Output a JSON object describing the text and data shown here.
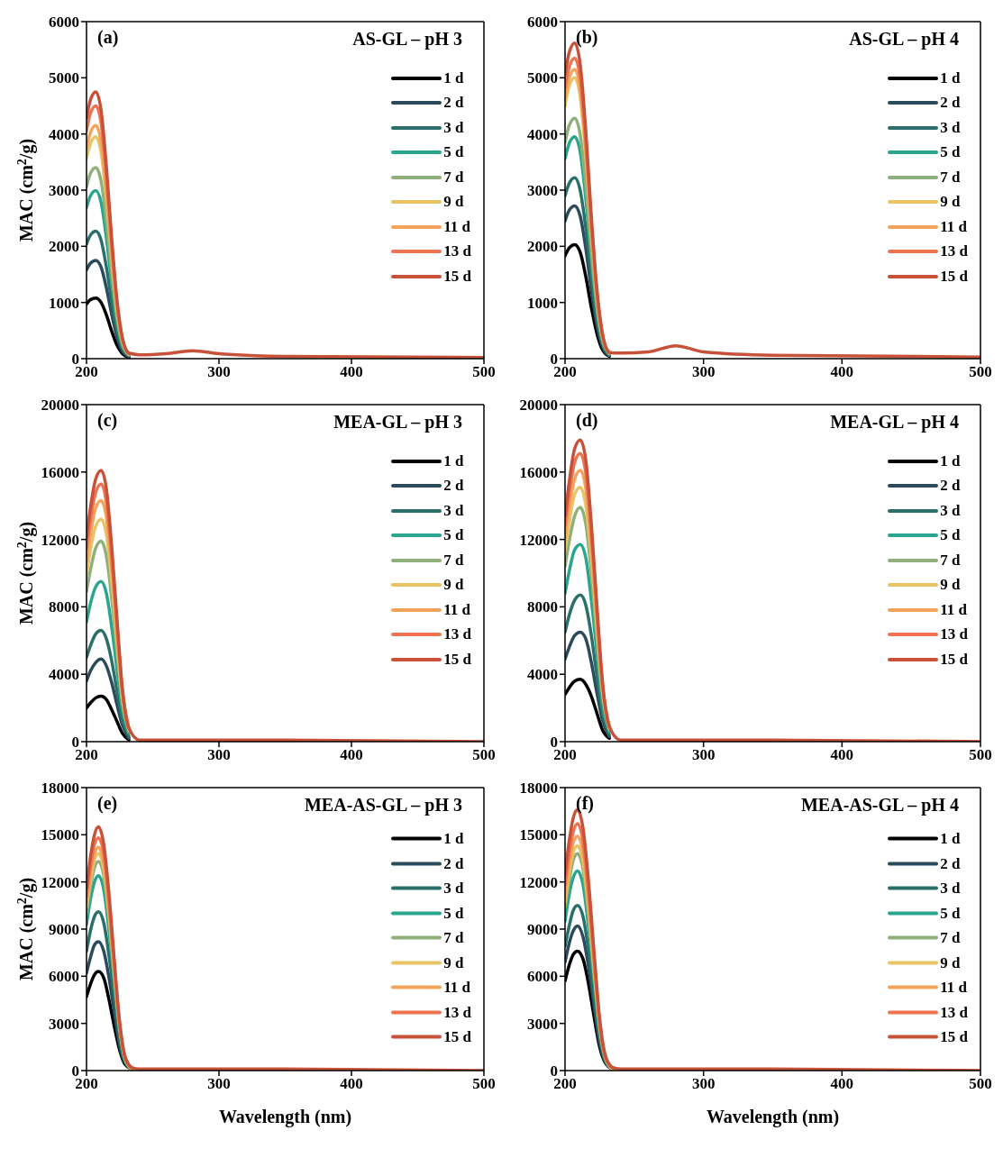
{
  "chart_data": [
    {
      "type": "line",
      "title": "AS-GL – pH 3",
      "annotations": [
        "(a)"
      ],
      "ylabel": "MAC (cm$^{2}$/g)",
      "legend": "top right",
      "marker": "none",
      "line_style": "solid",
      "xlim": [
        200,
        500
      ],
      "xticks": [
        200,
        300,
        400,
        500
      ],
      "ylim": [
        0,
        6000
      ],
      "yticks": [
        0,
        1000,
        2000,
        3000,
        4000,
        5000,
        6000
      ],
      "x": [
        200,
        203,
        207,
        211,
        215,
        219,
        223,
        227,
        232,
        240,
        260,
        280,
        300,
        350,
        500
      ],
      "series": [
        {
          "name": "1 d",
          "color": "#000000",
          "values": [
            970,
            1050,
            1080,
            1000,
            780,
            490,
            240,
            90,
            20,
            null,
            null,
            null,
            null,
            null,
            null
          ]
        },
        {
          "name": "2 d",
          "color": "#2b4a5c",
          "values": [
            1580,
            1700,
            1750,
            1630,
            1260,
            790,
            390,
            140,
            40,
            null,
            null,
            null,
            null,
            null,
            null
          ]
        },
        {
          "name": "3 d",
          "color": "#2a6f6a",
          "values": [
            2040,
            2200,
            2270,
            2110,
            1630,
            1020,
            500,
            180,
            50,
            null,
            null,
            null,
            null,
            null,
            null
          ]
        },
        {
          "name": "5 d",
          "color": "#2aa58e",
          "values": [
            2690,
            2900,
            2990,
            2780,
            2150,
            1350,
            660,
            240,
            60,
            null,
            null,
            null,
            null,
            null,
            null
          ]
        },
        {
          "name": "7 d",
          "color": "#8fb07a",
          "values": [
            3060,
            3300,
            3400,
            3160,
            2450,
            1530,
            750,
            270,
            70,
            null,
            null,
            null,
            null,
            null,
            null
          ]
        },
        {
          "name": "9 d",
          "color": "#e8c465",
          "values": [
            3560,
            3830,
            3950,
            3670,
            2840,
            1780,
            870,
            320,
            80,
            null,
            null,
            null,
            null,
            null,
            null
          ]
        },
        {
          "name": "11 d",
          "color": "#f3a35a",
          "values": [
            3740,
            4030,
            4150,
            3860,
            2990,
            1870,
            910,
            330,
            80,
            null,
            null,
            null,
            null,
            null,
            null
          ]
        },
        {
          "name": "13 d",
          "color": "#ee7350",
          "values": [
            4050,
            4370,
            4500,
            4190,
            3240,
            2030,
            990,
            360,
            90,
            null,
            null,
            null,
            null,
            null,
            null
          ]
        },
        {
          "name": "15 d",
          "color": "#c8513a",
          "values": [
            4280,
            4610,
            4750,
            4420,
            3420,
            2140,
            1050,
            380,
            100,
            70,
            90,
            140,
            90,
            40,
            20
          ]
        }
      ]
    },
    {
      "type": "line",
      "title": "AS-GL – pH 4",
      "annotations": [
        "(b)"
      ],
      "legend": "top right",
      "marker": "none",
      "line_style": "solid",
      "xlim": [
        200,
        500
      ],
      "xticks": [
        200,
        300,
        400,
        500
      ],
      "ylim": [
        0,
        6000
      ],
      "yticks": [
        0,
        1000,
        2000,
        3000,
        4000,
        5000,
        6000
      ],
      "x": [
        200,
        203,
        207,
        211,
        215,
        219,
        223,
        227,
        232,
        240,
        260,
        280,
        300,
        350,
        500
      ],
      "series": [
        {
          "name": "1 d",
          "color": "#000000",
          "values": [
            1830,
            1970,
            2030,
            1890,
            1460,
            910,
            450,
            160,
            40,
            null,
            null,
            null,
            null,
            null,
            null
          ]
        },
        {
          "name": "2 d",
          "color": "#2b4a5c",
          "values": [
            2450,
            2640,
            2720,
            2530,
            1960,
            1220,
            600,
            220,
            50,
            null,
            null,
            null,
            null,
            null,
            null
          ]
        },
        {
          "name": "3 d",
          "color": "#2a6f6a",
          "values": [
            2900,
            3120,
            3220,
            2990,
            2320,
            1450,
            710,
            260,
            60,
            null,
            null,
            null,
            null,
            null,
            null
          ]
        },
        {
          "name": "5 d",
          "color": "#2aa58e",
          "values": [
            3560,
            3830,
            3950,
            3670,
            2840,
            1780,
            870,
            320,
            80,
            null,
            null,
            null,
            null,
            null,
            null
          ]
        },
        {
          "name": "7 d",
          "color": "#8fb07a",
          "values": [
            3850,
            4150,
            4280,
            3980,
            3080,
            1930,
            940,
            340,
            90,
            null,
            null,
            null,
            null,
            null,
            null
          ]
        },
        {
          "name": "9 d",
          "color": "#e8c465",
          "values": [
            4500,
            4850,
            5000,
            4650,
            3600,
            2250,
            1100,
            400,
            100,
            null,
            null,
            null,
            null,
            null,
            null
          ]
        },
        {
          "name": "11 d",
          "color": "#f3a35a",
          "values": [
            4640,
            5000,
            5150,
            4790,
            3710,
            2320,
            1130,
            410,
            100,
            null,
            null,
            null,
            null,
            null,
            null
          ]
        },
        {
          "name": "13 d",
          "color": "#ee7350",
          "values": [
            4820,
            5190,
            5350,
            4980,
            3850,
            2410,
            1180,
            430,
            110,
            null,
            null,
            null,
            null,
            null,
            null
          ]
        },
        {
          "name": "15 d",
          "color": "#c8513a",
          "values": [
            5060,
            5450,
            5620,
            5230,
            4050,
            2530,
            1240,
            450,
            110,
            100,
            120,
            230,
            120,
            60,
            30
          ]
        }
      ]
    },
    {
      "type": "line",
      "title": "MEA-GL – pH 3",
      "annotations": [
        "(c)"
      ],
      "ylabel": "MAC (cm$^{2}$/g)",
      "legend": "top right",
      "marker": "none",
      "line_style": "solid",
      "xlim": [
        200,
        500
      ],
      "xticks": [
        200,
        300,
        400,
        500
      ],
      "ylim": [
        0,
        20000
      ],
      "yticks": [
        0,
        4000,
        8000,
        12000,
        16000,
        20000
      ],
      "x": [
        200,
        203,
        207,
        211,
        215,
        219,
        223,
        227,
        232,
        240,
        260,
        280,
        300,
        350,
        500
      ],
      "series": [
        {
          "name": "1 d",
          "color": "#000000",
          "values": [
            2000,
            2300,
            2600,
            2700,
            2500,
            1900,
            1200,
            500,
            100,
            null,
            null,
            null,
            null,
            null,
            null
          ]
        },
        {
          "name": "2 d",
          "color": "#2b4a5c",
          "values": [
            3600,
            4200,
            4700,
            4900,
            4500,
            3500,
            2200,
            1000,
            200,
            null,
            null,
            null,
            null,
            null,
            null
          ]
        },
        {
          "name": "3 d",
          "color": "#2a6f6a",
          "values": [
            5000,
            5700,
            6400,
            6600,
            6100,
            4800,
            3000,
            1300,
            300,
            null,
            null,
            null,
            null,
            null,
            null
          ]
        },
        {
          "name": "5 d",
          "color": "#2aa58e",
          "values": [
            7100,
            8200,
            9200,
            9500,
            8800,
            6800,
            4300,
            1900,
            500,
            null,
            null,
            null,
            null,
            null,
            null
          ]
        },
        {
          "name": "7 d",
          "color": "#8fb07a",
          "values": [
            8900,
            10200,
            11500,
            11900,
            11000,
            8500,
            5300,
            2400,
            600,
            null,
            null,
            null,
            null,
            null,
            null
          ]
        },
        {
          "name": "9 d",
          "color": "#e8c465",
          "values": [
            9900,
            11400,
            12800,
            13200,
            12300,
            9500,
            5900,
            2600,
            700,
            null,
            null,
            null,
            null,
            null,
            null
          ]
        },
        {
          "name": "11 d",
          "color": "#f3a35a",
          "values": [
            10700,
            12300,
            13900,
            14300,
            13300,
            10300,
            6400,
            2900,
            700,
            null,
            null,
            null,
            null,
            null,
            null
          ]
        },
        {
          "name": "13 d",
          "color": "#ee7350",
          "values": [
            11500,
            13200,
            14800,
            15300,
            14200,
            11000,
            6900,
            3100,
            800,
            null,
            null,
            null,
            null,
            null,
            null
          ]
        },
        {
          "name": "15 d",
          "color": "#c8513a",
          "values": [
            12100,
            13900,
            15600,
            16100,
            15000,
            11600,
            7300,
            3200,
            800,
            100,
            100,
            100,
            100,
            100,
            0
          ]
        }
      ]
    },
    {
      "type": "line",
      "title": "MEA-GL – pH 4",
      "annotations": [
        "(d)"
      ],
      "legend": "top right",
      "marker": "none",
      "line_style": "solid",
      "xlim": [
        200,
        500
      ],
      "xticks": [
        200,
        300,
        400,
        500
      ],
      "ylim": [
        0,
        20000
      ],
      "yticks": [
        0,
        4000,
        8000,
        12000,
        16000,
        20000
      ],
      "x": [
        200,
        203,
        207,
        211,
        215,
        219,
        223,
        227,
        232,
        240,
        260,
        280,
        300,
        350,
        500
      ],
      "series": [
        {
          "name": "1 d",
          "color": "#000000",
          "values": [
            2800,
            3200,
            3600,
            3700,
            3400,
            2700,
            1700,
            700,
            200,
            null,
            null,
            null,
            null,
            null,
            null
          ]
        },
        {
          "name": "2 d",
          "color": "#2b4a5c",
          "values": [
            4900,
            5600,
            6300,
            6500,
            6100,
            4700,
            2900,
            1300,
            300,
            null,
            null,
            null,
            null,
            null,
            null
          ]
        },
        {
          "name": "3 d",
          "color": "#2a6f6a",
          "values": [
            6500,
            7500,
            8400,
            8700,
            8100,
            6300,
            3900,
            1700,
            400,
            null,
            null,
            null,
            null,
            null,
            null
          ]
        },
        {
          "name": "5 d",
          "color": "#2aa58e",
          "values": [
            8800,
            10100,
            11400,
            11700,
            10900,
            8400,
            5300,
            2300,
            600,
            null,
            null,
            null,
            null,
            null,
            null
          ]
        },
        {
          "name": "7 d",
          "color": "#8fb07a",
          "values": [
            10400,
            11900,
            13400,
            13900,
            12900,
            10000,
            6200,
            2800,
            700,
            null,
            null,
            null,
            null,
            null,
            null
          ]
        },
        {
          "name": "9 d",
          "color": "#e8c465",
          "values": [
            11300,
            13000,
            14700,
            15100,
            14000,
            10900,
            6800,
            3000,
            800,
            null,
            null,
            null,
            null,
            null,
            null
          ]
        },
        {
          "name": "11 d",
          "color": "#f3a35a",
          "values": [
            12100,
            13900,
            15600,
            16100,
            15000,
            11600,
            7300,
            3200,
            800,
            null,
            null,
            null,
            null,
            null,
            null
          ]
        },
        {
          "name": "13 d",
          "color": "#ee7350",
          "values": [
            12800,
            14700,
            16600,
            17100,
            15900,
            12300,
            7700,
            3400,
            900,
            null,
            null,
            null,
            null,
            null,
            null
          ]
        },
        {
          "name": "15 d",
          "color": "#c8513a",
          "values": [
            13400,
            15400,
            17400,
            17900,
            16700,
            12900,
            8100,
            3600,
            900,
            100,
            100,
            100,
            100,
            100,
            0
          ]
        }
      ]
    },
    {
      "type": "line",
      "title": "MEA-AS-GL – pH 3",
      "annotations": [
        "(e)"
      ],
      "xlabel": "Wavelength (nm)",
      "ylabel": "MAC (cm$^{2}$/g)",
      "legend": "right",
      "marker": "none",
      "line_style": "solid",
      "xlim": [
        200,
        500
      ],
      "xticks": [
        200,
        300,
        400,
        500
      ],
      "ylim": [
        0,
        18000
      ],
      "yticks": [
        0,
        3000,
        6000,
        9000,
        12000,
        15000,
        18000
      ],
      "x": [
        200,
        203,
        206,
        209,
        213,
        217,
        221,
        225,
        229,
        234,
        240,
        260,
        280,
        300,
        350,
        500
      ],
      "series": [
        {
          "name": "1 d",
          "color": "#000000",
          "values": [
            4700,
            5500,
            6100,
            6300,
            5900,
            4500,
            2800,
            1300,
            400,
            100,
            null,
            null,
            null,
            null,
            null,
            null
          ]
        },
        {
          "name": "2 d",
          "color": "#2b4a5c",
          "values": [
            6200,
            7200,
            8000,
            8200,
            7600,
            5900,
            3700,
            1600,
            500,
            100,
            null,
            null,
            null,
            null,
            null,
            null
          ]
        },
        {
          "name": "3 d",
          "color": "#2a6f6a",
          "values": [
            7600,
            8900,
            9800,
            10100,
            9400,
            7300,
            4600,
            2000,
            600,
            100,
            null,
            null,
            null,
            null,
            null,
            null
          ]
        },
        {
          "name": "5 d",
          "color": "#2aa58e",
          "values": [
            9300,
            10900,
            12000,
            12400,
            11500,
            8900,
            5600,
            2500,
            700,
            100,
            null,
            null,
            null,
            null,
            null,
            null
          ]
        },
        {
          "name": "7 d",
          "color": "#8fb07a",
          "values": [
            10000,
            11700,
            12900,
            13300,
            12400,
            9600,
            6000,
            2700,
            800,
            100,
            null,
            null,
            null,
            null,
            null,
            null
          ]
        },
        {
          "name": "9 d",
          "color": "#e8c465",
          "values": [
            10400,
            12100,
            13400,
            13800,
            12800,
            9900,
            6200,
            2800,
            800,
            100,
            null,
            null,
            null,
            null,
            null,
            null
          ]
        },
        {
          "name": "11 d",
          "color": "#f3a35a",
          "values": [
            10700,
            12500,
            13800,
            14200,
            13200,
            10200,
            6400,
            2800,
            900,
            100,
            null,
            null,
            null,
            null,
            null,
            null
          ]
        },
        {
          "name": "13 d",
          "color": "#ee7350",
          "values": [
            11100,
            13000,
            14400,
            14800,
            13800,
            10700,
            6700,
            3000,
            900,
            200,
            null,
            null,
            null,
            null,
            null,
            null
          ]
        },
        {
          "name": "15 d",
          "color": "#c8513a",
          "values": [
            11600,
            13600,
            15000,
            15500,
            14400,
            11200,
            7000,
            3100,
            900,
            200,
            100,
            100,
            100,
            100,
            100,
            0
          ]
        }
      ]
    },
    {
      "type": "line",
      "title": "MEA-AS-GL – pH 4",
      "annotations": [
        "(f)"
      ],
      "xlabel": "Wavelength (nm)",
      "legend": "right",
      "marker": "none",
      "line_style": "solid",
      "xlim": [
        200,
        500
      ],
      "xticks": [
        200,
        300,
        400,
        500
      ],
      "ylim": [
        0,
        18000
      ],
      "yticks": [
        0,
        3000,
        6000,
        9000,
        12000,
        15000,
        18000
      ],
      "x": [
        200,
        203,
        206,
        209,
        213,
        217,
        221,
        225,
        229,
        234,
        240,
        260,
        280,
        300,
        350,
        500
      ],
      "series": [
        {
          "name": "1 d",
          "color": "#000000",
          "values": [
            5700,
            6700,
            7400,
            7600,
            7100,
            5500,
            3400,
            1500,
            500,
            100,
            null,
            null,
            null,
            null,
            null,
            null
          ]
        },
        {
          "name": "2 d",
          "color": "#2b4a5c",
          "values": [
            6900,
            8100,
            8900,
            9200,
            8500,
            6600,
            4100,
            1800,
            600,
            100,
            null,
            null,
            null,
            null,
            null,
            null
          ]
        },
        {
          "name": "3 d",
          "color": "#2a6f6a",
          "values": [
            7900,
            9200,
            10200,
            10500,
            9800,
            7600,
            4700,
            2100,
            600,
            100,
            null,
            null,
            null,
            null,
            null,
            null
          ]
        },
        {
          "name": "5 d",
          "color": "#2aa58e",
          "values": [
            9500,
            11200,
            12300,
            12700,
            11800,
            9100,
            5700,
            2500,
            800,
            100,
            null,
            null,
            null,
            null,
            null,
            null
          ]
        },
        {
          "name": "7 d",
          "color": "#8fb07a",
          "values": [
            10400,
            12100,
            13400,
            13800,
            12800,
            9900,
            6200,
            2800,
            800,
            100,
            null,
            null,
            null,
            null,
            null,
            null
          ]
        },
        {
          "name": "9 d",
          "color": "#e8c465",
          "values": [
            10700,
            12600,
            13900,
            14300,
            13300,
            10300,
            6400,
            2900,
            900,
            100,
            null,
            null,
            null,
            null,
            null,
            null
          ]
        },
        {
          "name": "11 d",
          "color": "#f3a35a",
          "values": [
            11200,
            13100,
            14500,
            14900,
            13900,
            10700,
            6700,
            3000,
            900,
            200,
            null,
            null,
            null,
            null,
            null,
            null
          ]
        },
        {
          "name": "13 d",
          "color": "#ee7350",
          "values": [
            11800,
            13800,
            15200,
            15700,
            14600,
            11300,
            7100,
            3100,
            900,
            200,
            null,
            null,
            null,
            null,
            null,
            null
          ]
        },
        {
          "name": "15 d",
          "color": "#c8513a",
          "values": [
            12500,
            14600,
            16100,
            16600,
            15400,
            12000,
            7500,
            3300,
            1000,
            200,
            100,
            100,
            100,
            100,
            100,
            0
          ]
        }
      ]
    }
  ]
}
